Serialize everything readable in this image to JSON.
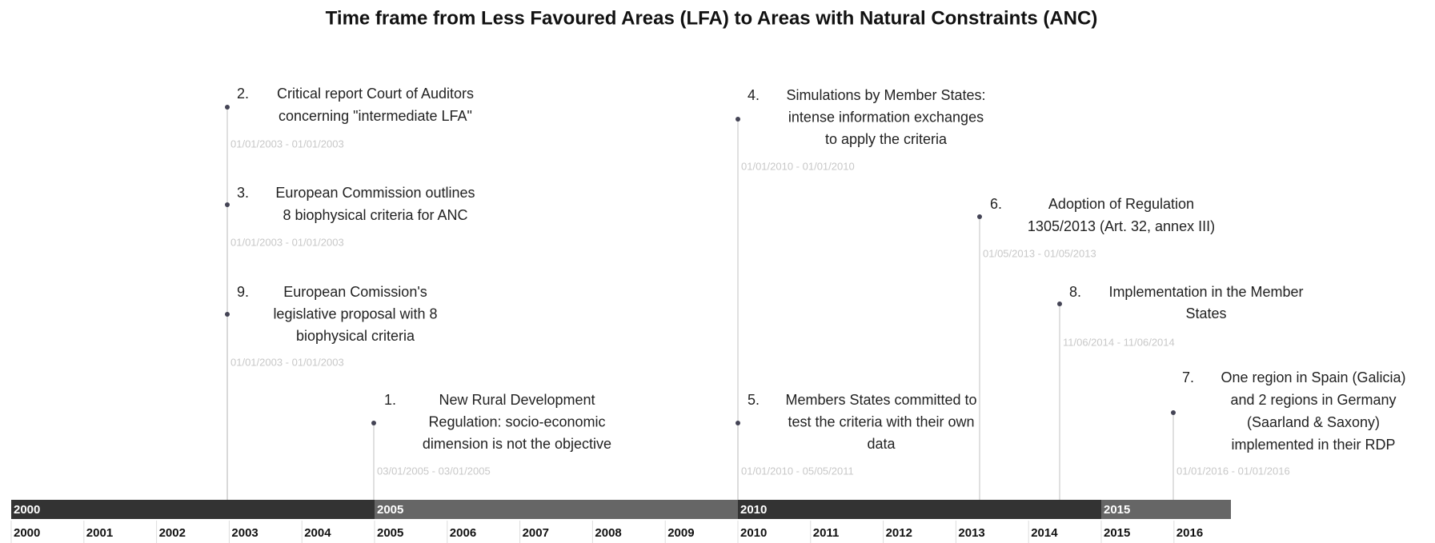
{
  "title": "Time frame from Less Favoured Areas (LFA) to Areas with Natural Constraints (ANC)",
  "events": [
    {
      "number": "2.",
      "lines": [
        "Critical report Court of Auditors",
        "concerning \"intermediate LFA\""
      ],
      "date": "01/01/2003 - 01/01/2003"
    },
    {
      "number": "3.",
      "lines": [
        "European Commission outlines",
        "8 biophysical criteria for ANC"
      ],
      "date": "01/01/2003 - 01/01/2003"
    },
    {
      "number": "9.",
      "lines": [
        "European Comission's",
        "legislative proposal with 8",
        "biophysical criteria"
      ],
      "date": "01/01/2003 - 01/01/2003"
    },
    {
      "number": "1.",
      "lines": [
        "New Rural Development",
        "Regulation: socio-economic",
        "dimension is not the objective"
      ],
      "date": "03/01/2005 - 03/01/2005"
    },
    {
      "number": "4.",
      "lines": [
        "Simulations by Member States:",
        "intense information exchanges",
        "to apply the criteria"
      ],
      "date": "01/01/2010 - 01/01/2010"
    },
    {
      "number": "5.",
      "lines": [
        "Members States committed to",
        "test the criteria with their own",
        "data"
      ],
      "date": "01/01/2010 - 05/05/2011"
    },
    {
      "number": "6.",
      "lines": [
        "Adoption of Regulation",
        "1305/2013 (Art. 32, annex III)"
      ],
      "date": "01/05/2013 - 01/05/2013"
    },
    {
      "number": "8.",
      "lines": [
        "Implementation in the Member",
        "States"
      ],
      "date": "11/06/2014 - 11/06/2014"
    },
    {
      "number": "7.",
      "lines": [
        "One region in Spain (Galicia)",
        "and 2 regions in Germany",
        "(Saarland & Saxony)",
        "implemented in their RDP"
      ],
      "date": "01/01/2016 - 01/01/2016"
    }
  ],
  "timeline": {
    "decades": [
      "2000",
      "2005",
      "2010",
      "2015"
    ],
    "years": [
      "2000",
      "2001",
      "2002",
      "2003",
      "2004",
      "2005",
      "2006",
      "2007",
      "2008",
      "2009",
      "2010",
      "2011",
      "2012",
      "2013",
      "2014",
      "2015",
      "2016"
    ]
  }
}
